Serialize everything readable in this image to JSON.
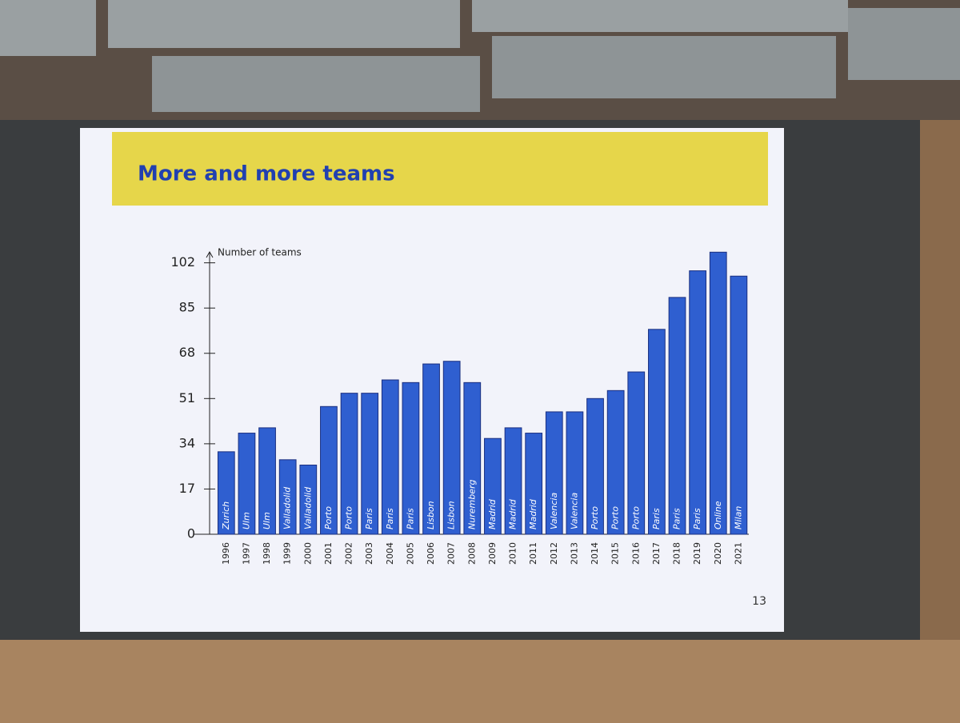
{
  "chart_data": {
    "type": "bar",
    "title": "More and more teams",
    "y_label": "Number of teams",
    "categories": [
      "1996",
      "1997",
      "1998",
      "1999",
      "2000",
      "2001",
      "2002",
      "2003",
      "2004",
      "2005",
      "2006",
      "2007",
      "2008",
      "2009",
      "2010",
      "2011",
      "2012",
      "2013",
      "2014",
      "2015",
      "2016",
      "2017",
      "2018",
      "2019",
      "2020",
      "2021"
    ],
    "values": [
      31,
      38,
      40,
      28,
      26,
      48,
      53,
      53,
      58,
      57,
      64,
      65,
      57,
      36,
      40,
      38,
      46,
      46,
      51,
      54,
      61,
      77,
      89,
      99,
      106,
      97
    ],
    "bar_labels": [
      "Zurich",
      "Ulm",
      "Ulm",
      "Valladolid",
      "Valladolid",
      "Porto",
      "Porto",
      "Paris",
      "Paris",
      "Paris",
      "Lisbon",
      "Lisbon",
      "Nuremberg",
      "Madrid",
      "Madrid",
      "Madrid",
      "Valencia",
      "Valencia",
      "Porto",
      "Porto",
      "Porto",
      "Paris",
      "Paris",
      "Paris",
      "Online",
      "Milan"
    ],
    "color": "#2f5fd0",
    "ylim": [
      0,
      110
    ],
    "yticks": [
      0,
      17,
      34,
      51,
      68,
      85,
      102
    ]
  },
  "slide": {
    "page_number": "13"
  }
}
